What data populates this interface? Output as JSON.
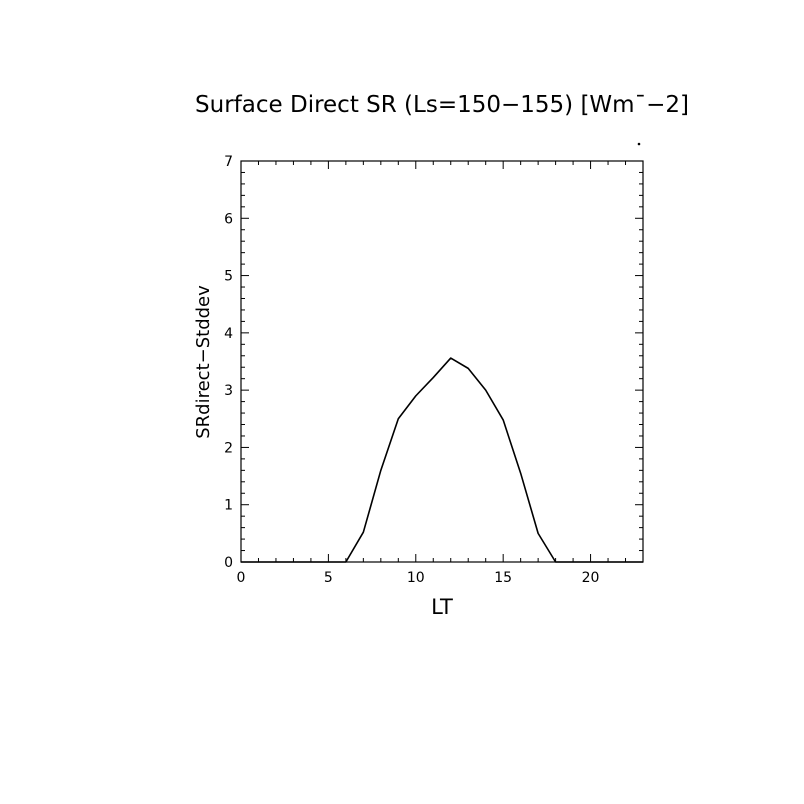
{
  "chart_data": {
    "type": "line",
    "title": "Surface Direct SR (Ls=150−155) [Wm¯−2]",
    "xlabel": "LT",
    "ylabel": "SRdirect−Stddev",
    "xlim": [
      0,
      23
    ],
    "ylim": [
      0,
      7
    ],
    "x_ticks": [
      0,
      5,
      10,
      15,
      20
    ],
    "y_ticks": [
      0,
      1,
      2,
      3,
      4,
      5,
      6,
      7
    ],
    "x_minor_step": 1,
    "y_minor_step": 0.2,
    "grid": false,
    "series": [
      {
        "color": "#000000",
        "x": [
          0,
          1,
          2,
          3,
          4,
          5,
          6,
          7,
          8,
          9,
          10,
          11,
          12,
          13,
          14,
          15,
          16,
          17,
          18,
          19,
          20,
          21,
          22,
          23
        ],
        "y": [
          0,
          0,
          0,
          0,
          0,
          0,
          0,
          0.52,
          1.6,
          2.5,
          2.9,
          3.22,
          3.56,
          3.38,
          3.0,
          2.48,
          1.55,
          0.5,
          0,
          0,
          0,
          0,
          0,
          0
        ]
      }
    ],
    "annotation_dot": true
  }
}
